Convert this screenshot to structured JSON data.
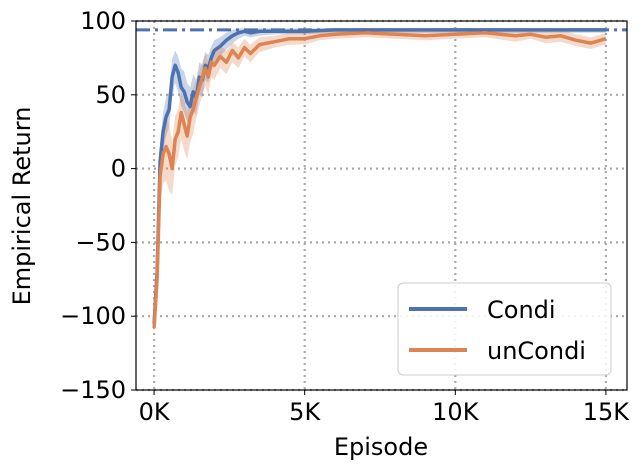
{
  "chart_data": {
    "type": "line",
    "title": "",
    "xlabel": "Episode",
    "ylabel": "Empirical Return",
    "xlim": [
      -600,
      15700
    ],
    "ylim": [
      -150,
      100
    ],
    "xticks": [
      0,
      5000,
      10000,
      15000
    ],
    "xtick_labels": [
      "0K",
      "5K",
      "10K",
      "15K"
    ],
    "yticks": [
      -150,
      -100,
      -50,
      0,
      50,
      100
    ],
    "ytick_labels": [
      "−150",
      "−100",
      "−50",
      "0",
      "50",
      "100"
    ],
    "grid": true,
    "grid_style": "dotted",
    "legend_position": "lower-right",
    "reference_line": {
      "y": 94,
      "style": "dash-dot",
      "color": "#4c72b0"
    },
    "series": [
      {
        "name": "Condi",
        "color": "#4c72b0",
        "x": [
          0,
          100,
          200,
          300,
          400,
          500,
          600,
          700,
          800,
          900,
          1000,
          1100,
          1200,
          1300,
          1400,
          1500,
          1600,
          1700,
          1800,
          1900,
          2000,
          2200,
          2400,
          2600,
          2800,
          3000,
          3200,
          3500,
          4000,
          4500,
          5000,
          6000,
          7000,
          8000,
          9000,
          10000,
          11000,
          12000,
          13000,
          14000,
          15000
        ],
        "y": [
          -105,
          -70,
          5,
          25,
          35,
          40,
          62,
          70,
          65,
          55,
          52,
          45,
          42,
          52,
          48,
          62,
          60,
          70,
          68,
          75,
          80,
          83,
          87,
          90,
          92,
          93,
          92,
          93,
          93,
          93,
          93,
          94,
          94,
          94,
          94,
          94,
          94,
          94,
          94,
          94,
          94
        ],
        "lower": [
          -110,
          -85,
          -10,
          12,
          22,
          28,
          48,
          58,
          52,
          42,
          38,
          32,
          30,
          40,
          36,
          50,
          48,
          60,
          58,
          66,
          72,
          76,
          81,
          85,
          88,
          90,
          89,
          90,
          91,
          91,
          91,
          92,
          92,
          92,
          92,
          92,
          92,
          92,
          92,
          92,
          92
        ],
        "upper": [
          -100,
          -55,
          18,
          38,
          48,
          52,
          74,
          80,
          76,
          68,
          66,
          58,
          55,
          64,
          60,
          72,
          70,
          79,
          77,
          83,
          87,
          89,
          92,
          94,
          95,
          95,
          94,
          95,
          95,
          95,
          95,
          95,
          95,
          95,
          95,
          95,
          95,
          95,
          95,
          95,
          95
        ]
      },
      {
        "name": "unCondi",
        "color": "#dd8452",
        "x": [
          0,
          100,
          200,
          300,
          400,
          500,
          600,
          700,
          800,
          900,
          1000,
          1100,
          1200,
          1300,
          1400,
          1500,
          1600,
          1700,
          1800,
          1900,
          2000,
          2200,
          2400,
          2600,
          2800,
          3000,
          3200,
          3500,
          4000,
          4500,
          5000,
          5500,
          6000,
          7000,
          8000,
          9000,
          10000,
          11000,
          12000,
          12500,
          13000,
          13500,
          14000,
          14500,
          15000
        ],
        "y": [
          -108,
          -75,
          -5,
          10,
          15,
          10,
          0,
          20,
          25,
          38,
          30,
          22,
          35,
          40,
          48,
          55,
          62,
          68,
          62,
          72,
          70,
          76,
          72,
          80,
          75,
          82,
          78,
          84,
          86,
          88,
          88,
          90,
          91,
          92,
          91,
          90,
          91,
          92,
          90,
          91,
          89,
          90,
          87,
          85,
          88
        ],
        "lower": [
          -112,
          -90,
          -25,
          -10,
          -8,
          -15,
          -18,
          2,
          8,
          20,
          12,
          6,
          18,
          24,
          34,
          42,
          50,
          56,
          50,
          62,
          60,
          68,
          64,
          72,
          68,
          76,
          72,
          79,
          82,
          84,
          84,
          87,
          88,
          89,
          88,
          87,
          88,
          89,
          86,
          88,
          85,
          86,
          83,
          81,
          84
        ],
        "upper": [
          -104,
          -60,
          12,
          26,
          34,
          30,
          18,
          36,
          40,
          52,
          46,
          38,
          50,
          54,
          60,
          66,
          72,
          78,
          72,
          80,
          79,
          83,
          80,
          86,
          82,
          88,
          84,
          89,
          90,
          92,
          92,
          93,
          94,
          95,
          94,
          93,
          94,
          95,
          94,
          94,
          93,
          94,
          91,
          89,
          92
        ]
      }
    ]
  }
}
